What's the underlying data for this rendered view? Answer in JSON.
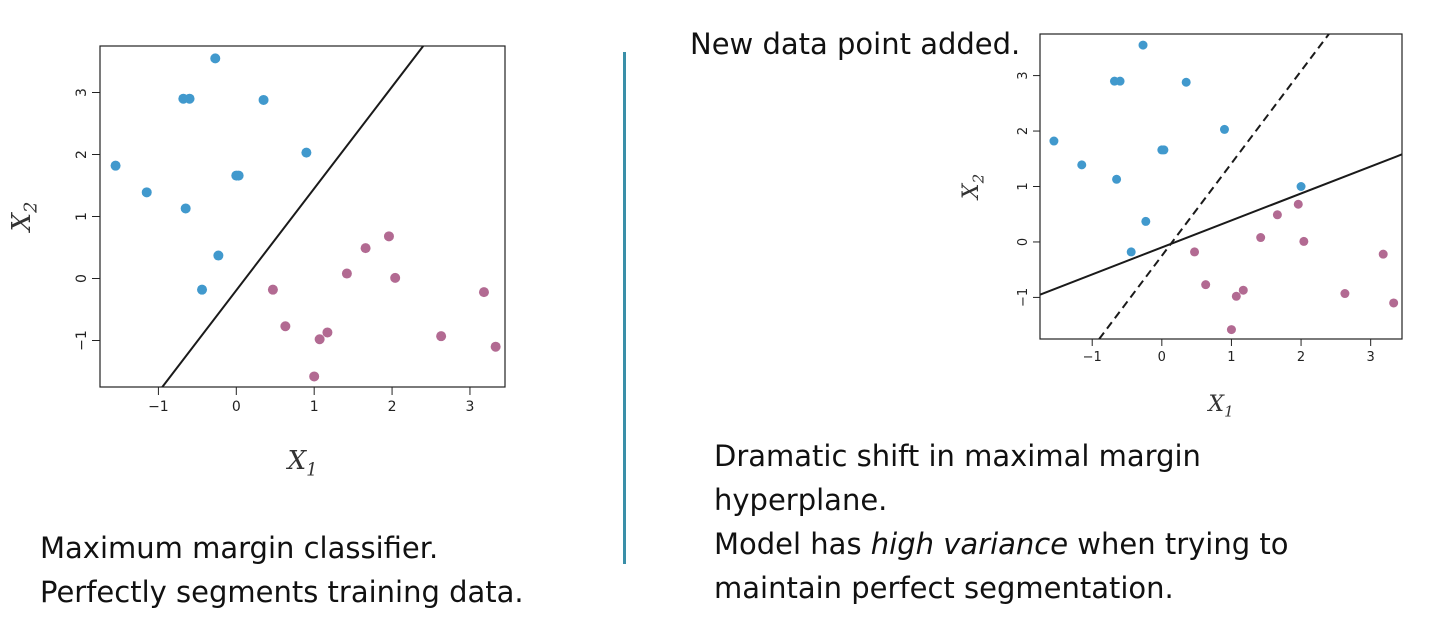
{
  "chart_data": [
    {
      "type": "scatter",
      "xlabel": "X1",
      "ylabel": "X2",
      "xlim": [
        -1.75,
        3.45
      ],
      "ylim": [
        -1.75,
        3.75
      ],
      "xticks": [
        -1,
        0,
        1,
        2,
        3
      ],
      "yticks": [
        -1,
        0,
        1,
        2,
        3
      ],
      "grid": false,
      "series": [
        {
          "color": "#4199cd",
          "points": [
            [
              -1.55,
              1.82
            ],
            [
              -1.15,
              1.39
            ],
            [
              -0.68,
              2.9
            ],
            [
              -0.6,
              2.9
            ],
            [
              -0.65,
              1.13
            ],
            [
              -0.27,
              3.55
            ],
            [
              -0.23,
              0.37
            ],
            [
              -0.44,
              -0.18
            ],
            [
              0.0,
              1.66
            ],
            [
              0.03,
              1.66
            ],
            [
              0.35,
              2.88
            ],
            [
              0.9,
              2.03
            ]
          ]
        },
        {
          "color": "#b26a92",
          "points": [
            [
              0.47,
              -0.18
            ],
            [
              0.63,
              -0.77
            ],
            [
              1.07,
              -0.98
            ],
            [
              1.17,
              -0.87
            ],
            [
              1.0,
              -1.58
            ],
            [
              1.42,
              0.08
            ],
            [
              1.66,
              0.49
            ],
            [
              1.96,
              0.68
            ],
            [
              2.04,
              0.01
            ],
            [
              2.63,
              -0.93
            ],
            [
              3.18,
              -0.22
            ],
            [
              3.33,
              -1.1
            ]
          ]
        }
      ],
      "lines": [
        {
          "style": "solid",
          "points": [
            [
              -0.95,
              -1.75
            ],
            [
              2.4,
              3.75
            ]
          ]
        }
      ]
    },
    {
      "type": "scatter",
      "xlabel": "X1",
      "ylabel": "X2",
      "xlim": [
        -1.75,
        3.45
      ],
      "ylim": [
        -1.75,
        3.75
      ],
      "xticks": [
        -1,
        0,
        1,
        2,
        3
      ],
      "yticks": [
        -1,
        0,
        1,
        2,
        3
      ],
      "grid": false,
      "series": [
        {
          "color": "#4199cd",
          "points": [
            [
              -1.55,
              1.82
            ],
            [
              -1.15,
              1.39
            ],
            [
              -0.68,
              2.9
            ],
            [
              -0.6,
              2.9
            ],
            [
              -0.65,
              1.13
            ],
            [
              -0.27,
              3.55
            ],
            [
              -0.23,
              0.37
            ],
            [
              -0.44,
              -0.18
            ],
            [
              0.0,
              1.66
            ],
            [
              0.03,
              1.66
            ],
            [
              0.35,
              2.88
            ],
            [
              0.9,
              2.03
            ],
            [
              2.0,
              1.0
            ]
          ]
        },
        {
          "color": "#b26a92",
          "points": [
            [
              0.47,
              -0.18
            ],
            [
              0.63,
              -0.77
            ],
            [
              1.07,
              -0.98
            ],
            [
              1.17,
              -0.87
            ],
            [
              1.0,
              -1.58
            ],
            [
              1.42,
              0.08
            ],
            [
              1.66,
              0.49
            ],
            [
              1.96,
              0.68
            ],
            [
              2.04,
              0.01
            ],
            [
              2.63,
              -0.93
            ],
            [
              3.18,
              -0.22
            ],
            [
              3.33,
              -1.1
            ]
          ]
        }
      ],
      "lines": [
        {
          "style": "solid",
          "points": [
            [
              -1.75,
              -0.95
            ],
            [
              3.45,
              1.58
            ]
          ]
        },
        {
          "style": "dashed",
          "points": [
            [
              -0.9,
              -1.75
            ],
            [
              2.4,
              3.75
            ]
          ]
        }
      ]
    }
  ],
  "left_caption": {
    "line1": "Maximum margin classifier.",
    "line2": "Perfectly segments training data."
  },
  "right_header": "New data point added.",
  "right_caption": {
    "line1": "Dramatic shift in maximal margin",
    "line2": "hyperplane.",
    "line3_pre": "Model has ",
    "line3_em": "high variance",
    "line3_post": " when trying to",
    "line4": "maintain perfect segmentation."
  }
}
